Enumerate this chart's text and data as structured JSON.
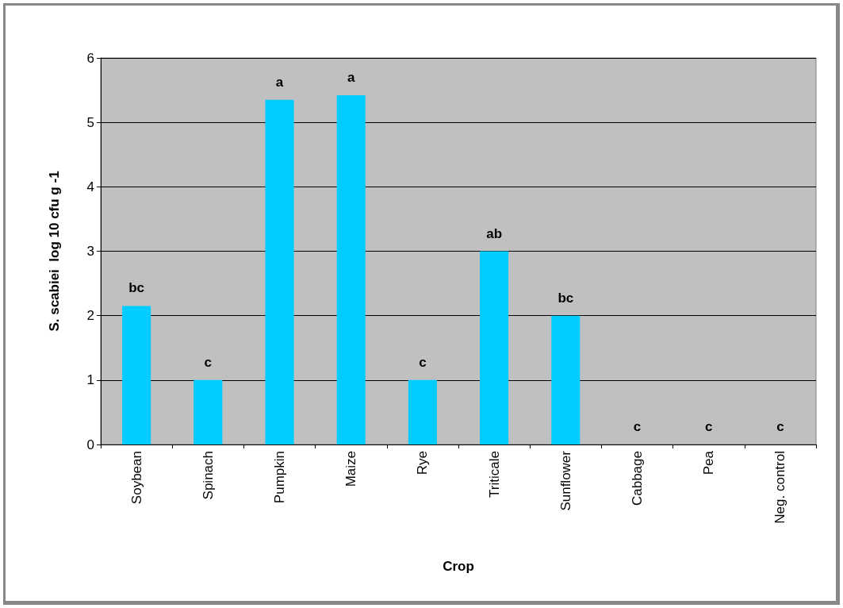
{
  "chart_data": {
    "type": "bar",
    "xlabel": "Crop",
    "ylabel": "S. scabiei  log 10 cfu g -1",
    "categories": [
      "Soybean",
      "Spinach",
      "Pumpkin",
      "Maize",
      "Rye",
      "Triticale",
      "Sunflower",
      "Cabbage",
      "Pea",
      "Neg. control"
    ],
    "values": [
      2.15,
      1,
      5.35,
      5.42,
      1,
      3,
      2,
      0,
      0,
      0
    ],
    "value_labels": [
      "bc",
      "c",
      "a",
      "a",
      "c",
      "ab",
      "bc",
      "c",
      "c",
      "c"
    ],
    "color": "#00ccff",
    "ylim": [
      0,
      6
    ],
    "yticks": [
      0,
      1,
      2,
      3,
      4,
      5,
      6
    ],
    "grid": "y"
  }
}
